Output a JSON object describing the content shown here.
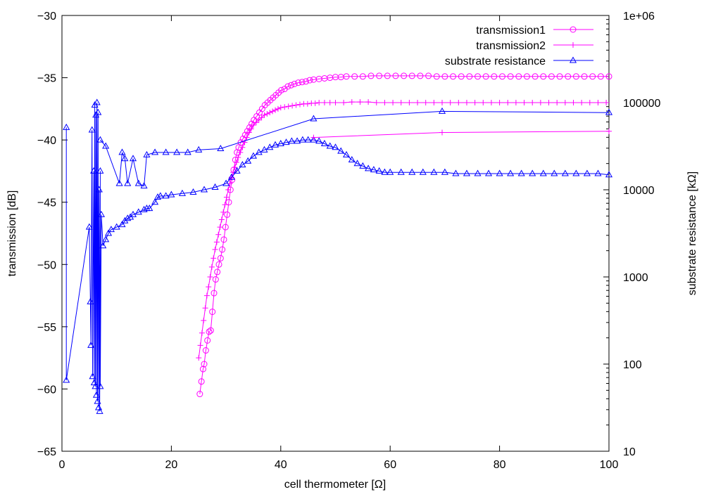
{
  "chart_data": {
    "type": "line",
    "title": "",
    "xlabel": "cell thermometer [Ω]",
    "ylabel": "transmission [dB]",
    "y2label": "substrate resistance [kΩ]",
    "xlim": [
      0,
      100
    ],
    "ylim": [
      -65,
      -30
    ],
    "y2lim": [
      10,
      1000000
    ],
    "y2scale": "log",
    "grid": false,
    "legend_position": "top-right",
    "x_ticks": [
      "0",
      "20",
      "40",
      "60",
      "80",
      "100"
    ],
    "y_ticks": [
      "-65",
      "-60",
      "-55",
      "-50",
      "-45",
      "-40",
      "-35",
      "-30"
    ],
    "y2_ticks": [
      "10",
      "100",
      "1000",
      "10000",
      "100000",
      "1e+06"
    ],
    "series": [
      {
        "name": "transmission1",
        "axis": "left",
        "marker": "circle",
        "color": "#ff00ff",
        "x": [
          25.2,
          25.5,
          25.8,
          26.0,
          26.3,
          26.6,
          26.9,
          27.2,
          27.5,
          27.8,
          28.1,
          28.4,
          28.7,
          29.0,
          29.3,
          29.6,
          29.9,
          30.2,
          30.5,
          30.8,
          31.1,
          31.4,
          31.7,
          32.0,
          32.3,
          32.7,
          33.1,
          33.5,
          33.9,
          34.3,
          34.7,
          35.1,
          35.6,
          36.1,
          36.6,
          37.1,
          37.6,
          38.1,
          38.6,
          39.1,
          39.6,
          40.1,
          40.7,
          41.3,
          41.9,
          42.5,
          43.2,
          43.9,
          44.6,
          45.3,
          46.0,
          47.0,
          48.0,
          49.0,
          50.0,
          51.0,
          52.0,
          53.5,
          55.0,
          56.5,
          58.0,
          59.5,
          61.0,
          62.5,
          64.0,
          65.5,
          67.0,
          68.5,
          70.0,
          71.5,
          73.0,
          74.5,
          76.0,
          77.5,
          79.0,
          80.5,
          82.0,
          83.5,
          85.0,
          86.5,
          88.0,
          89.5,
          91.0,
          92.5,
          94.0,
          95.5,
          97.0,
          98.5,
          100.0
        ],
        "y": [
          -60.4,
          -59.4,
          -58.4,
          -58.0,
          -56.9,
          -56.1,
          -55.4,
          -55.3,
          -53.8,
          -52.3,
          -51.2,
          -50.6,
          -50.0,
          -49.5,
          -48.8,
          -48.0,
          -47.0,
          -46.0,
          -45.0,
          -44.0,
          -43.2,
          -42.4,
          -41.6,
          -41.0,
          -40.6,
          -40.2,
          -39.9,
          -39.6,
          -39.3,
          -39.0,
          -38.7,
          -38.4,
          -38.1,
          -37.8,
          -37.5,
          -37.2,
          -37.0,
          -36.8,
          -36.6,
          -36.4,
          -36.2,
          -36.0,
          -35.9,
          -35.7,
          -35.6,
          -35.5,
          -35.4,
          -35.35,
          -35.3,
          -35.2,
          -35.15,
          -35.1,
          -35.05,
          -35.0,
          -34.95,
          -34.95,
          -34.9,
          -34.9,
          -34.9,
          -34.85,
          -34.85,
          -34.85,
          -34.85,
          -34.85,
          -34.85,
          -34.85,
          -34.85,
          -34.9,
          -34.9,
          -34.9,
          -34.9,
          -34.9,
          -34.9,
          -34.9,
          -34.9,
          -34.9,
          -34.9,
          -34.9,
          -34.9,
          -34.9,
          -34.9,
          -34.9,
          -34.9,
          -34.9,
          -34.9,
          -34.9,
          -34.9,
          -34.9,
          -34.9
        ]
      },
      {
        "name": "transmission2",
        "axis": "left",
        "marker": "plus",
        "color": "#ff00ff",
        "x": [
          25.0,
          25.3,
          25.6,
          25.9,
          26.2,
          26.5,
          26.8,
          27.1,
          27.4,
          27.7,
          28.0,
          28.3,
          28.6,
          28.9,
          29.2,
          29.5,
          29.8,
          30.1,
          30.4,
          30.7,
          31.0,
          31.3,
          31.6,
          31.9,
          32.2,
          32.6,
          33.0,
          33.4,
          33.8,
          34.2,
          34.6,
          35.0,
          35.5,
          36.0,
          36.5,
          37.0,
          37.5,
          38.0,
          38.5,
          39.0,
          39.5,
          40.0,
          40.7,
          41.4,
          42.1,
          42.8,
          43.5,
          44.2,
          44.9,
          45.6,
          46.3,
          47.0,
          48.0,
          49.0,
          50.0,
          51.5,
          53.0,
          54.5,
          56.0,
          57.5,
          59.0,
          60.5,
          62.0,
          63.5,
          65.0,
          66.5,
          68.0,
          69.5,
          71.0,
          72.5,
          74.0,
          75.5,
          77.0,
          78.5,
          80.0,
          81.5,
          83.0,
          84.5,
          86.0,
          87.5,
          89.0,
          90.5,
          92.0,
          93.5,
          95.0,
          96.5,
          98.0,
          99.5
        ],
        "y": [
          -57.5,
          -56.5,
          -55.5,
          -54.5,
          -53.5,
          -52.5,
          -51.8,
          -51.0,
          -50.2,
          -49.5,
          -48.8,
          -48.2,
          -47.6,
          -47.0,
          -46.4,
          -45.8,
          -45.2,
          -44.6,
          -44.0,
          -43.5,
          -43.0,
          -42.6,
          -42.2,
          -41.8,
          -41.4,
          -41.0,
          -40.6,
          -40.2,
          -39.8,
          -39.4,
          -39.1,
          -38.8,
          -38.6,
          -38.4,
          -38.2,
          -38.0,
          -37.9,
          -37.8,
          -37.7,
          -37.6,
          -37.5,
          -37.4,
          -37.35,
          -37.3,
          -37.25,
          -37.2,
          -37.15,
          -37.1,
          -37.1,
          -37.05,
          -37.05,
          -37.0,
          -37.0,
          -37.0,
          -37.0,
          -37.0,
          -36.95,
          -36.95,
          -36.95,
          -37.0,
          -37.0,
          -37.0,
          -37.0,
          -37.0,
          -37.0,
          -37.0,
          -37.0,
          -37.0,
          -37.0,
          -37.0,
          -37.0,
          -37.0,
          -37.0,
          -37.0,
          -37.0,
          -37.0,
          -37.0,
          -37.0,
          -37.0,
          -37.0,
          -37.0,
          -37.0,
          -37.0,
          -37.0,
          -37.0,
          -37.0,
          -37.0,
          -37.0
        ]
      },
      {
        "name": "substrate resistance",
        "axis": "left",
        "marker": "triangle",
        "color": "#0000ff",
        "x": [
          0.8,
          0.8,
          5.0,
          5.2,
          5.3,
          5.5,
          5.6,
          5.8,
          5.9,
          6.0,
          6.1,
          6.2,
          6.3,
          6.4,
          6.5,
          6.6,
          6.7,
          6.8,
          6.9,
          7.0,
          7.0,
          7.2,
          7.5,
          8.0,
          8.5,
          9.0,
          10.0,
          11.0,
          11.5,
          12.0,
          12.5,
          13.0,
          14.0,
          15.0,
          15.5,
          16.0,
          17.0,
          17.5,
          18.0,
          19.0,
          20.0,
          22.0,
          24.0,
          26.0,
          28.0,
          30.0,
          31.0,
          32.0,
          33.0,
          34.0,
          35.0,
          36.0,
          37.0,
          38.0,
          39.0,
          40.0,
          41.0,
          42.0,
          43.0,
          44.0,
          45.0,
          46.0,
          47.0,
          48.0,
          49.0,
          50.0,
          51.0,
          52.0,
          53.0,
          54.0,
          55.0,
          56.0,
          57.0,
          58.0,
          59.0,
          60.0,
          62.0,
          64.0,
          66.0,
          68.0,
          70.0,
          72.0,
          74.0,
          76.0,
          78.0,
          80.0,
          82.0,
          84.0,
          86.0,
          88.0,
          90.0,
          92.0,
          94.0,
          96.0,
          98.0,
          100.0
        ],
        "y": [
          -39.0,
          -59.3,
          -47.0,
          -53.0,
          -56.5,
          -39.2,
          -59.0,
          -42.5,
          -59.5,
          -37.2,
          -59.8,
          -38.0,
          -60.5,
          -37.0,
          -61.0,
          -37.8,
          -61.5,
          -44.0,
          -61.8,
          -42.5,
          -59.8,
          -46.0,
          -48.5,
          -48.0,
          -47.5,
          -47.2,
          -47.0,
          -46.8,
          -46.5,
          -46.3,
          -46.2,
          -46.0,
          -45.8,
          -45.6,
          -45.5,
          -45.5,
          -45.0,
          -44.6,
          -44.5,
          -44.5,
          -44.4,
          -44.3,
          -44.2,
          -44.0,
          -43.8,
          -43.5,
          -43.0,
          -42.5,
          -42.0,
          -41.7,
          -41.3,
          -41.0,
          -40.8,
          -40.6,
          -40.4,
          -40.3,
          -40.2,
          -40.1,
          -40.1,
          -40.0,
          -40.0,
          -40.0,
          -40.1,
          -40.3,
          -40.5,
          -40.6,
          -40.9,
          -41.2,
          -41.6,
          -41.9,
          -42.1,
          -42.3,
          -42.4,
          -42.5,
          -42.6,
          -42.6,
          -42.6,
          -42.6,
          -42.6,
          -42.6,
          -42.6,
          -42.7,
          -42.7,
          -42.7,
          -42.7,
          -42.7,
          -42.7,
          -42.7,
          -42.7,
          -42.7,
          -42.7,
          -42.7,
          -42.7,
          -42.7,
          -42.7,
          -42.8
        ]
      },
      {
        "name": "",
        "axis": "left",
        "marker": "plus",
        "color": "#ff00ff",
        "x": [
          46.0,
          69.5,
          100.0
        ],
        "y": [
          -39.8,
          -39.4,
          -39.3
        ]
      },
      {
        "name": "",
        "axis": "left",
        "marker": "triangle",
        "color": "#0000ff",
        "x": [
          7.0,
          8.0,
          10.5,
          11.0,
          11.5,
          12.0,
          13.0,
          14.0,
          15.0,
          15.5,
          17.0,
          19.0,
          21.0,
          23.0,
          25.0,
          29.0,
          46.0,
          69.5,
          100.0
        ],
        "y": [
          -40.0,
          -40.5,
          -43.5,
          -41.0,
          -41.5,
          -43.5,
          -41.5,
          -43.5,
          -43.7,
          -41.2,
          -41.0,
          -41.0,
          -41.0,
          -41.0,
          -40.8,
          -40.7,
          -38.3,
          -37.7,
          -37.8
        ]
      }
    ]
  }
}
